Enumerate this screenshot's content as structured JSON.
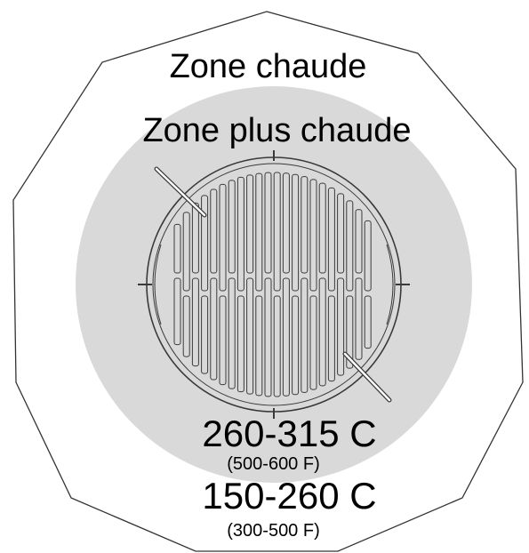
{
  "labels": {
    "warm_zone": "Zone chaude",
    "hotter_zone": "Zone plus chaude",
    "hot_temp_c": "260-315 C",
    "hot_temp_f": "(500-600 F)",
    "warm_temp_c": "150-260 C",
    "warm_temp_f": "(300-500 F)"
  },
  "colors": {
    "hot_zone_fill": "#d9d9d9",
    "outline": "#333333",
    "grate_stroke": "#3a3a3a",
    "background": "#ffffff"
  },
  "icons": {
    "grate": "grill-grate-icon",
    "handles": "grate-handle-icon"
  }
}
